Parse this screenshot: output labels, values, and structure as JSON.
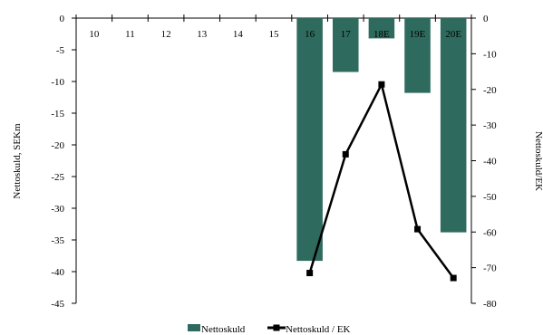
{
  "chart_data": {
    "type": "bar",
    "categories": [
      "10",
      "11",
      "12",
      "13",
      "14",
      "15",
      "16",
      "17",
      "18E",
      "19E",
      "20E"
    ],
    "series": [
      {
        "name": "Nettoskuld",
        "kind": "bar",
        "axis": "left",
        "color": "#2e6b5e",
        "values": [
          null,
          null,
          null,
          null,
          null,
          null,
          -38.3,
          -8.5,
          -3.2,
          -11.8,
          -33.8
        ]
      },
      {
        "name": "Nettoskuld / EK",
        "kind": "line",
        "axis": "right",
        "color": "#000000",
        "values": [
          null,
          null,
          null,
          null,
          null,
          null,
          -71.5,
          -38.2,
          -18.6,
          -59.2,
          -72.9
        ]
      }
    ],
    "y_left": {
      "label": "Nettoskuld, SEKm",
      "min": -45,
      "max": 0,
      "ticks": [
        0,
        -5,
        -10,
        -15,
        -20,
        -25,
        -30,
        -35,
        -40,
        -45
      ]
    },
    "y_right": {
      "label": "Nettoskuld/EK",
      "min": -80,
      "max": 0,
      "ticks": [
        0,
        -10,
        -20,
        -30,
        -40,
        -50,
        -60,
        -70,
        -80
      ]
    },
    "legend_position": "bottom-center",
    "grid": false
  }
}
